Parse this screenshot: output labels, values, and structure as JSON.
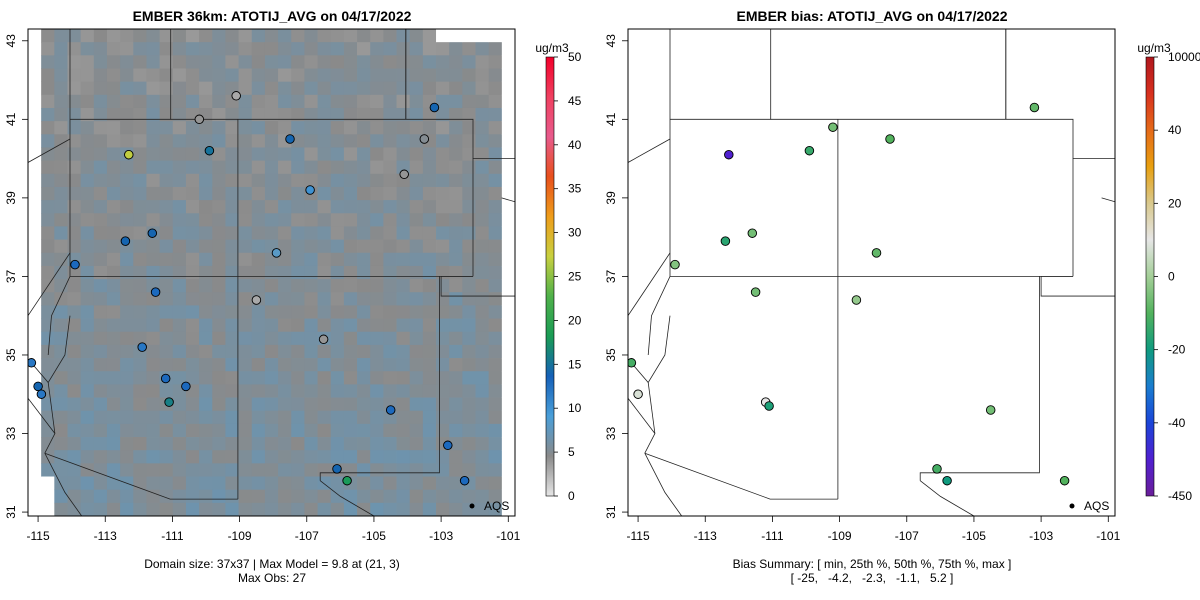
{
  "figure": {
    "left_title": "EMBER 36km: ATOTIJ_AVG on 04/17/2022",
    "right_title": "EMBER bias: ATOTIJ_AVG on 04/17/2022",
    "left_caption_line1": "Domain size: 37x37 | Max Model = 9.8 at (21, 3)",
    "left_caption_line2": "Max Obs: 27",
    "right_caption_line1": "Bias Summary: [ min, 25th %, 50th %, 75th %, max ]",
    "right_caption_line2": "[ -25,   -4.2,   -2.3,   -1.1,   5.2 ]",
    "legend_marker_label": "AQS"
  },
  "colorbars": {
    "left": {
      "unit": "ug/m3",
      "ticks": [
        "0",
        "5",
        "10",
        "15",
        "20",
        "25",
        "30",
        "35",
        "40",
        "45",
        "50"
      ],
      "stops": [
        "#e6e6e6",
        "#8a8a8a",
        "#4a9fd9",
        "#1560b8",
        "#1a9c55",
        "#4fb14a",
        "#c8d040",
        "#ee9d1b",
        "#e8501c",
        "#e85a8c",
        "#f04060",
        "#f2002a"
      ]
    },
    "right": {
      "unit": "ug/m3",
      "ticks": [
        "-450",
        "-40",
        "-20",
        "0",
        "20",
        "40",
        "10000"
      ],
      "stops": [
        "#6a1e99",
        "#5020d0",
        "#1b45d8",
        "#1a7dcf",
        "#109b7f",
        "#52b25d",
        "#a4cf98",
        "#e6e6e6",
        "#d9c98e",
        "#e8a010",
        "#e56a19",
        "#d7301f",
        "#b0171d"
      ]
    }
  },
  "axes": {
    "x_ticks": [
      "-115",
      "-113",
      "-111",
      "-109",
      "-107",
      "-105",
      "-103",
      "-101"
    ],
    "y_ticks": [
      "31",
      "33",
      "35",
      "37",
      "39",
      "41",
      "43"
    ],
    "xlim": [
      -115.3,
      -100.8
    ],
    "ylim": [
      30.9,
      43.3
    ]
  },
  "chart_data": [
    {
      "type": "heatmap",
      "title": "EMBER 36km: ATOTIJ_AVG on 04/17/2022",
      "xlabel": "",
      "ylabel": "",
      "ylim": [
        0,
        50
      ],
      "domain_size": "37x37",
      "max_model": 9.8,
      "max_obs": 27,
      "points": [
        {
          "lon": -112.3,
          "lat": 40.1,
          "value": 27
        },
        {
          "lon": -109.9,
          "lat": 40.2,
          "value": 15
        },
        {
          "lon": -107.5,
          "lat": 40.5,
          "value": 14
        },
        {
          "lon": -111.6,
          "lat": 38.1,
          "value": 14
        },
        {
          "lon": -111.5,
          "lat": 36.6,
          "value": 13
        },
        {
          "lon": -112.4,
          "lat": 37.9,
          "value": 14
        },
        {
          "lon": -113.9,
          "lat": 37.3,
          "value": 13
        },
        {
          "lon": -115.2,
          "lat": 34.8,
          "value": 12
        },
        {
          "lon": -115.0,
          "lat": 34.2,
          "value": 14
        },
        {
          "lon": -114.9,
          "lat": 34.0,
          "value": 12
        },
        {
          "lon": -111.2,
          "lat": 34.4,
          "value": 13
        },
        {
          "lon": -110.6,
          "lat": 34.2,
          "value": 13
        },
        {
          "lon": -111.1,
          "lat": 33.8,
          "value": 16
        },
        {
          "lon": -104.5,
          "lat": 33.6,
          "value": 13
        },
        {
          "lon": -102.3,
          "lat": 31.8,
          "value": 13
        },
        {
          "lon": -102.8,
          "lat": 32.7,
          "value": 13
        },
        {
          "lon": -103.2,
          "lat": 41.3,
          "value": 14
        },
        {
          "lon": -106.1,
          "lat": 32.1,
          "value": 14
        },
        {
          "lon": -105.8,
          "lat": 31.8,
          "value": 18
        },
        {
          "lon": -107.9,
          "lat": 37.6,
          "value": 8
        },
        {
          "lon": -106.9,
          "lat": 39.2,
          "value": 10
        },
        {
          "lon": -111.9,
          "lat": 35.2,
          "value": 12
        },
        {
          "lon": -110.2,
          "lat": 41.0,
          "value": 4
        },
        {
          "lon": -109.1,
          "lat": 41.6,
          "value": 3
        },
        {
          "lon": -108.5,
          "lat": 36.4,
          "value": 3
        },
        {
          "lon": -106.5,
          "lat": 35.4,
          "value": 4
        },
        {
          "lon": -103.5,
          "lat": 40.5,
          "value": 5
        },
        {
          "lon": -104.1,
          "lat": 39.6,
          "value": 4
        }
      ]
    },
    {
      "type": "scatter",
      "title": "EMBER bias: ATOTIJ_AVG on 04/17/2022",
      "xlabel": "",
      "ylabel": "",
      "summary": {
        "min": -25,
        "p25": -4.2,
        "p50": -2.3,
        "p75": -1.1,
        "max": 5.2
      },
      "points": [
        {
          "lon": -112.3,
          "lat": 40.1,
          "value": -25
        },
        {
          "lon": -109.9,
          "lat": 40.2,
          "value": -7
        },
        {
          "lon": -107.5,
          "lat": 40.5,
          "value": -5
        },
        {
          "lon": -111.6,
          "lat": 38.1,
          "value": -3
        },
        {
          "lon": -111.5,
          "lat": 36.6,
          "value": -3
        },
        {
          "lon": -112.4,
          "lat": 37.9,
          "value": -8
        },
        {
          "lon": -113.9,
          "lat": 37.3,
          "value": -2
        },
        {
          "lon": -115.2,
          "lat": 34.8,
          "value": -6
        },
        {
          "lon": -115.0,
          "lat": 34.0,
          "value": 4
        },
        {
          "lon": -111.2,
          "lat": 33.8,
          "value": 5
        },
        {
          "lon": -111.1,
          "lat": 33.7,
          "value": -9
        },
        {
          "lon": -106.1,
          "lat": 32.1,
          "value": -6
        },
        {
          "lon": -105.8,
          "lat": 31.8,
          "value": -10
        },
        {
          "lon": -102.3,
          "lat": 31.8,
          "value": -5
        },
        {
          "lon": -104.5,
          "lat": 33.6,
          "value": -3
        },
        {
          "lon": -107.9,
          "lat": 37.6,
          "value": -4
        },
        {
          "lon": -103.2,
          "lat": 41.3,
          "value": -4
        },
        {
          "lon": -109.2,
          "lat": 40.8,
          "value": -3
        },
        {
          "lon": -108.5,
          "lat": 36.4,
          "value": -1
        }
      ]
    }
  ]
}
